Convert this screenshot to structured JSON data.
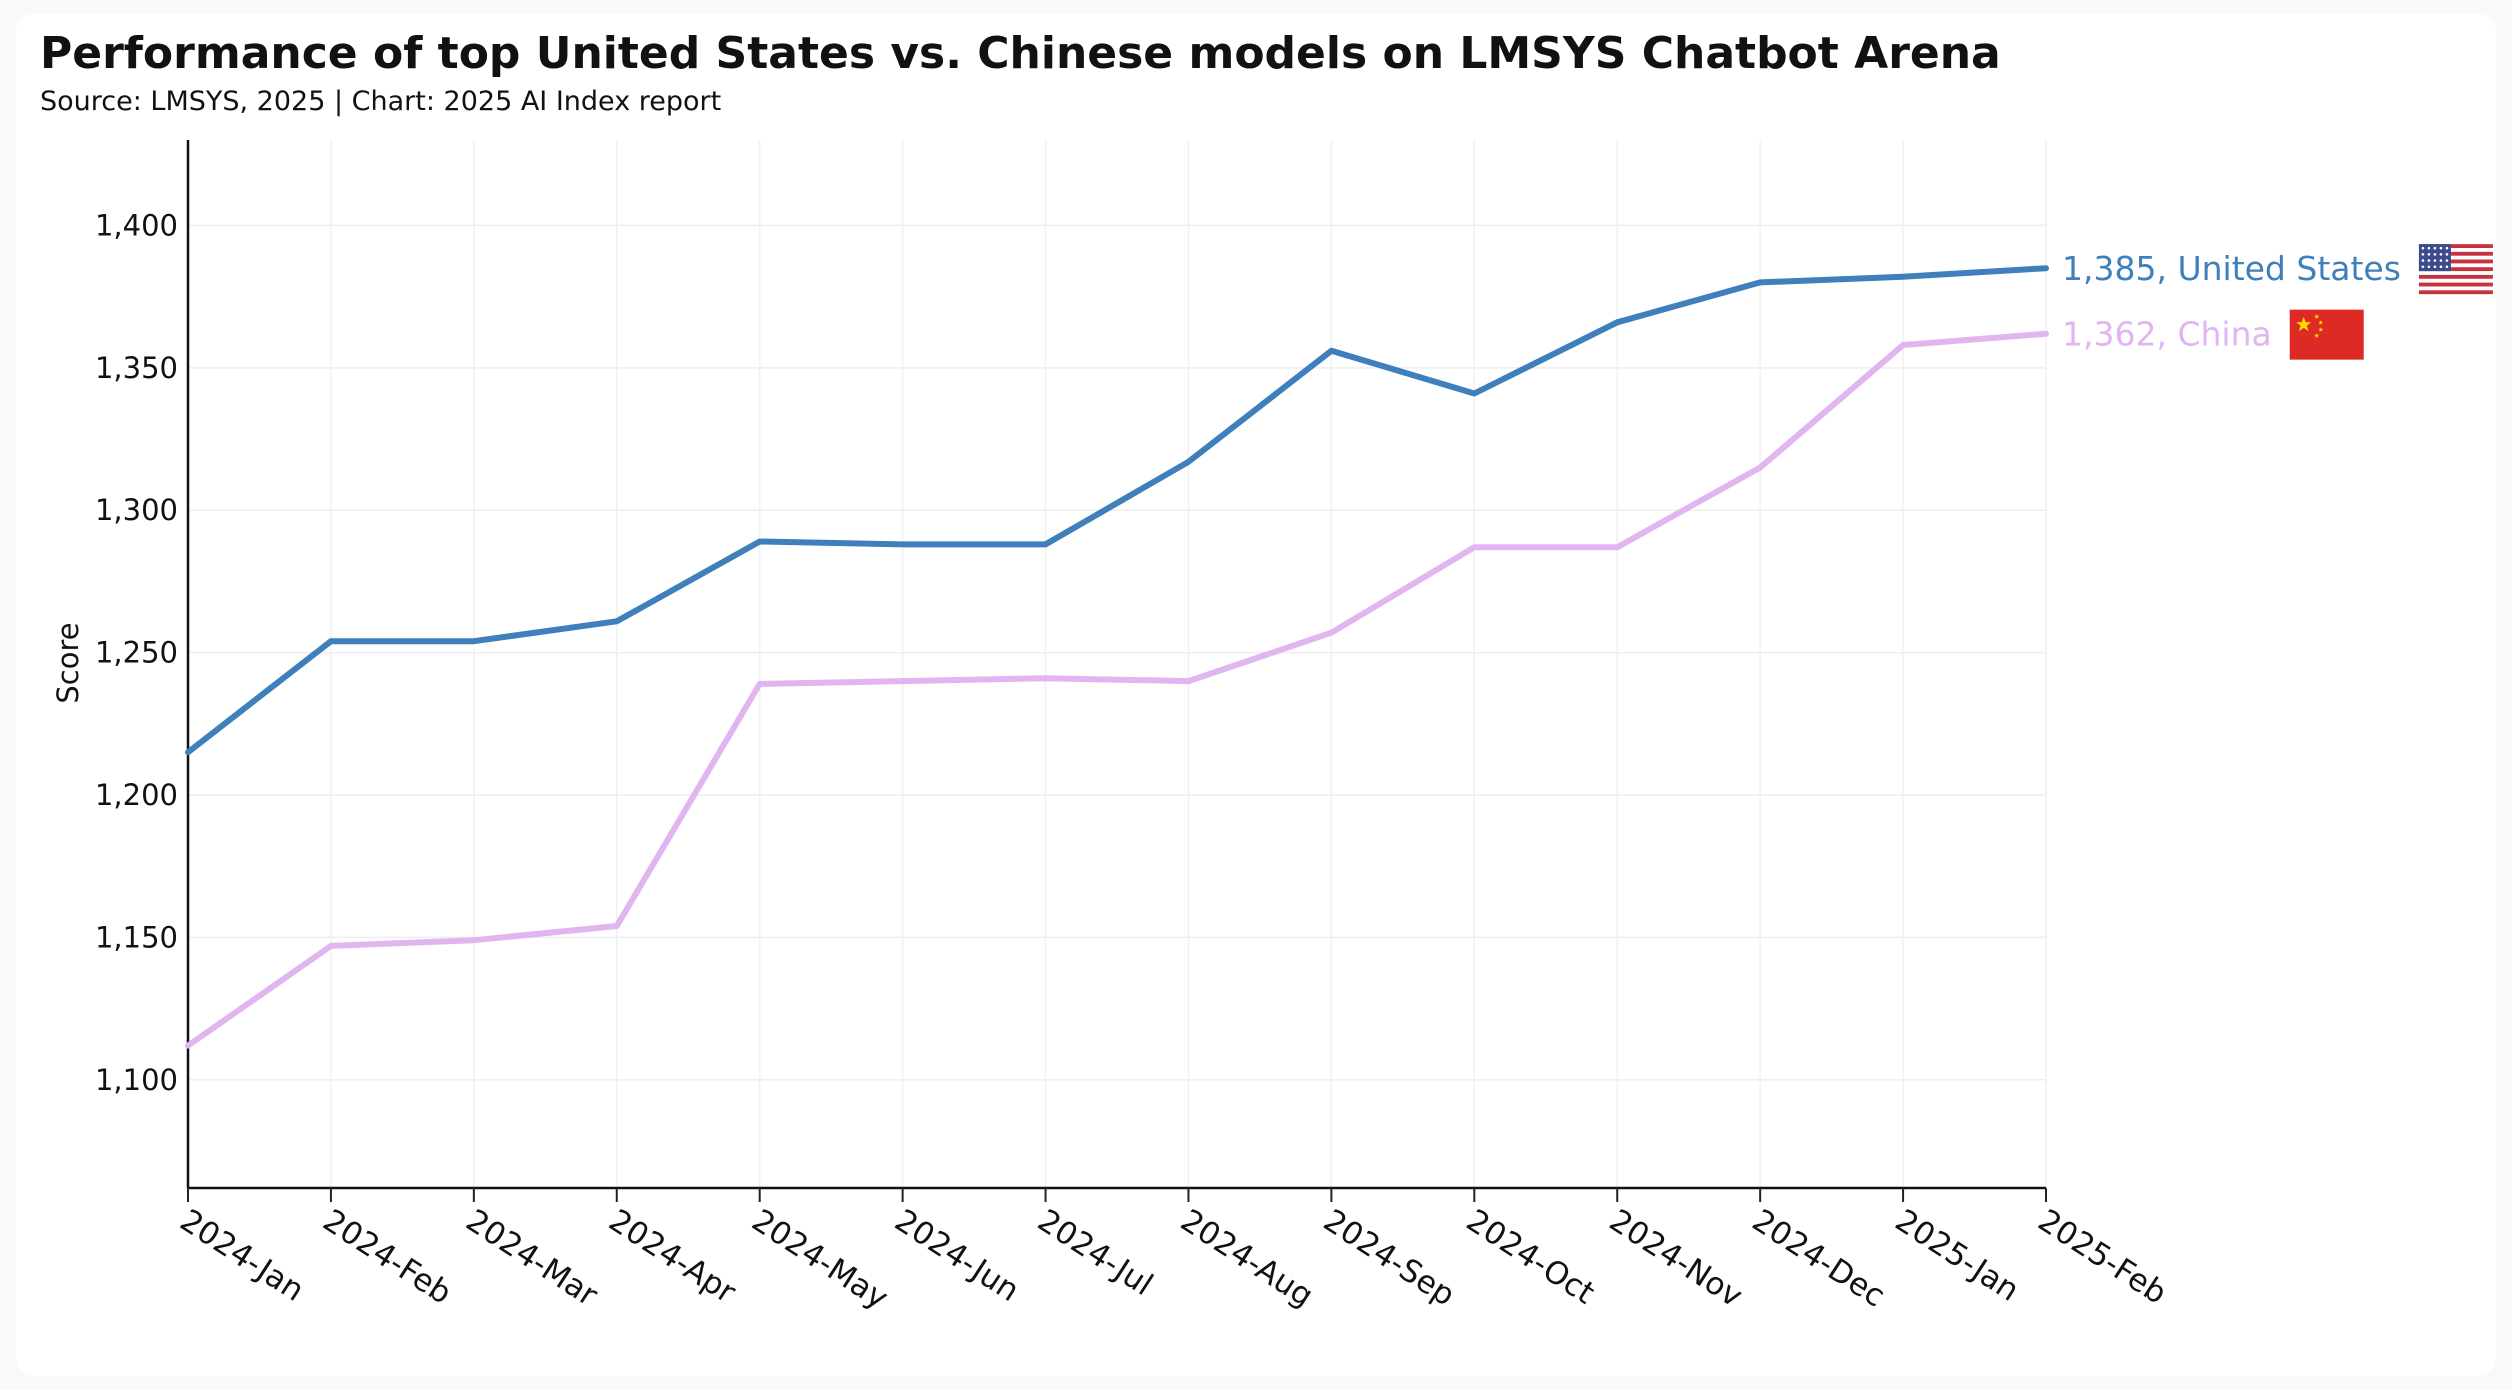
{
  "header": {
    "title": "Performance of top United States vs. Chinese models on LMSYS Chatbot Arena",
    "subtitle": "Source: LMSYS, 2025 | Chart: 2025 AI Index report"
  },
  "chart_data": {
    "type": "line",
    "title": "Performance of top United States vs. Chinese models on LMSYS Chatbot Arena",
    "subtitle": "Source: LMSYS, 2025 | Chart: 2025 AI Index report",
    "xlabel": "",
    "ylabel": "Score",
    "ylim": [
      1062,
      1430
    ],
    "yticks": [
      1100,
      1150,
      1200,
      1250,
      1300,
      1350,
      1400
    ],
    "ytick_labels": [
      "1,100",
      "1,150",
      "1,200",
      "1,250",
      "1,300",
      "1,350",
      "1,400"
    ],
    "categories": [
      "2024-Jan",
      "2024-Feb",
      "2024-Mar",
      "2024-Apr",
      "2024-May",
      "2024-Jun",
      "2024-Jul",
      "2024-Aug",
      "2024-Sep",
      "2024-Oct",
      "2024-Nov",
      "2024-Dec",
      "2025-Jan",
      "2025-Feb"
    ],
    "grid": true,
    "legend": "direct labels at line ends with country flags",
    "series": [
      {
        "name": "United States",
        "color": "#3f7fbb",
        "values": [
          1215,
          1254,
          1254,
          1261,
          1289,
          1288,
          1288,
          1317,
          1356,
          1341,
          1366,
          1380,
          1382,
          1385
        ],
        "end_label": "1,385, United States",
        "flag_icon": "us-flag-icon"
      },
      {
        "name": "China",
        "color": "#e0b5f0",
        "values": [
          1112,
          1147,
          1149,
          1154,
          1239,
          1240,
          1241,
          1240,
          1257,
          1287,
          1287,
          1315,
          1358,
          1362
        ],
        "end_label": "1,362, China",
        "flag_icon": "china-flag-icon"
      }
    ]
  }
}
